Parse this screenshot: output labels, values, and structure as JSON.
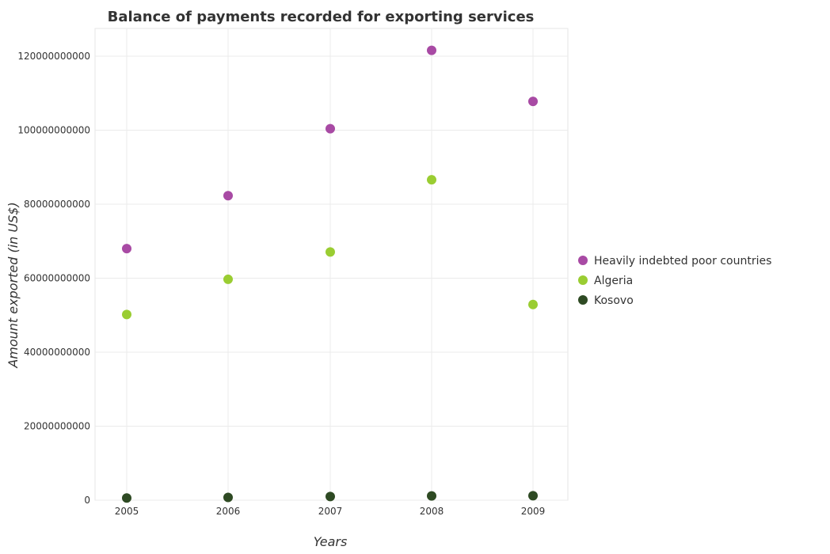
{
  "chart_data": {
    "type": "scatter",
    "title": "Balance of payments recorded for exporting services",
    "xlabel": "Years",
    "ylabel": "Amount exported (in US$)",
    "categories": [
      "2005",
      "2006",
      "2007",
      "2008",
      "2009"
    ],
    "ylim": [
      0,
      127500000000
    ],
    "yticks": [
      0,
      20000000000,
      40000000000,
      60000000000,
      80000000000,
      100000000000,
      120000000000
    ],
    "ytick_labels": [
      "0",
      "20000000000",
      "40000000000",
      "60000000000",
      "80000000000",
      "100000000000",
      "120000000000"
    ],
    "grid": true,
    "legend_position": "right",
    "series": [
      {
        "name": "Heavily indebted poor countries",
        "color": "#a84aa4",
        "values": [
          68000000000,
          82300000000,
          100400000000,
          121600000000,
          107800000000
        ]
      },
      {
        "name": "Algeria",
        "color": "#9acd32",
        "values": [
          50200000000,
          59700000000,
          67100000000,
          86600000000,
          52900000000
        ]
      },
      {
        "name": "Kosovo",
        "color": "#2e4a23",
        "values": [
          600000000,
          750000000,
          1000000000,
          1150000000,
          1200000000
        ]
      }
    ]
  }
}
